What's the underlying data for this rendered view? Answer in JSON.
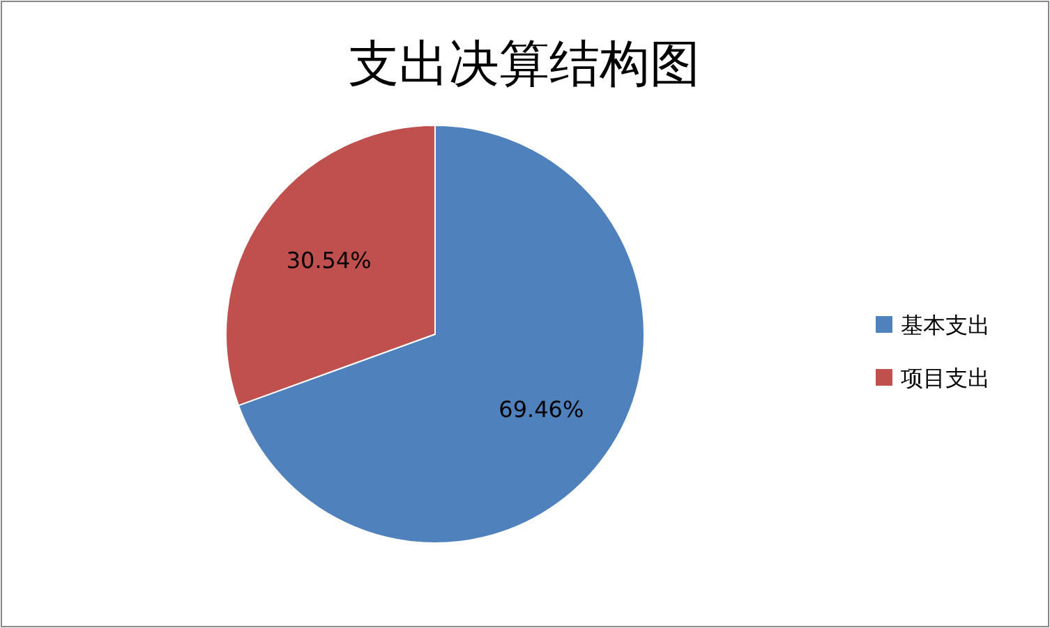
{
  "chart_data": {
    "type": "pie",
    "title": "支出决算结构图",
    "categories": [
      "基本支出",
      "项目支出"
    ],
    "values": [
      69.46,
      30.54
    ],
    "colors": [
      "#4f81bd",
      "#c0504d"
    ],
    "value_labels": [
      "69.46%",
      "30.54%"
    ],
    "legend": "right"
  }
}
